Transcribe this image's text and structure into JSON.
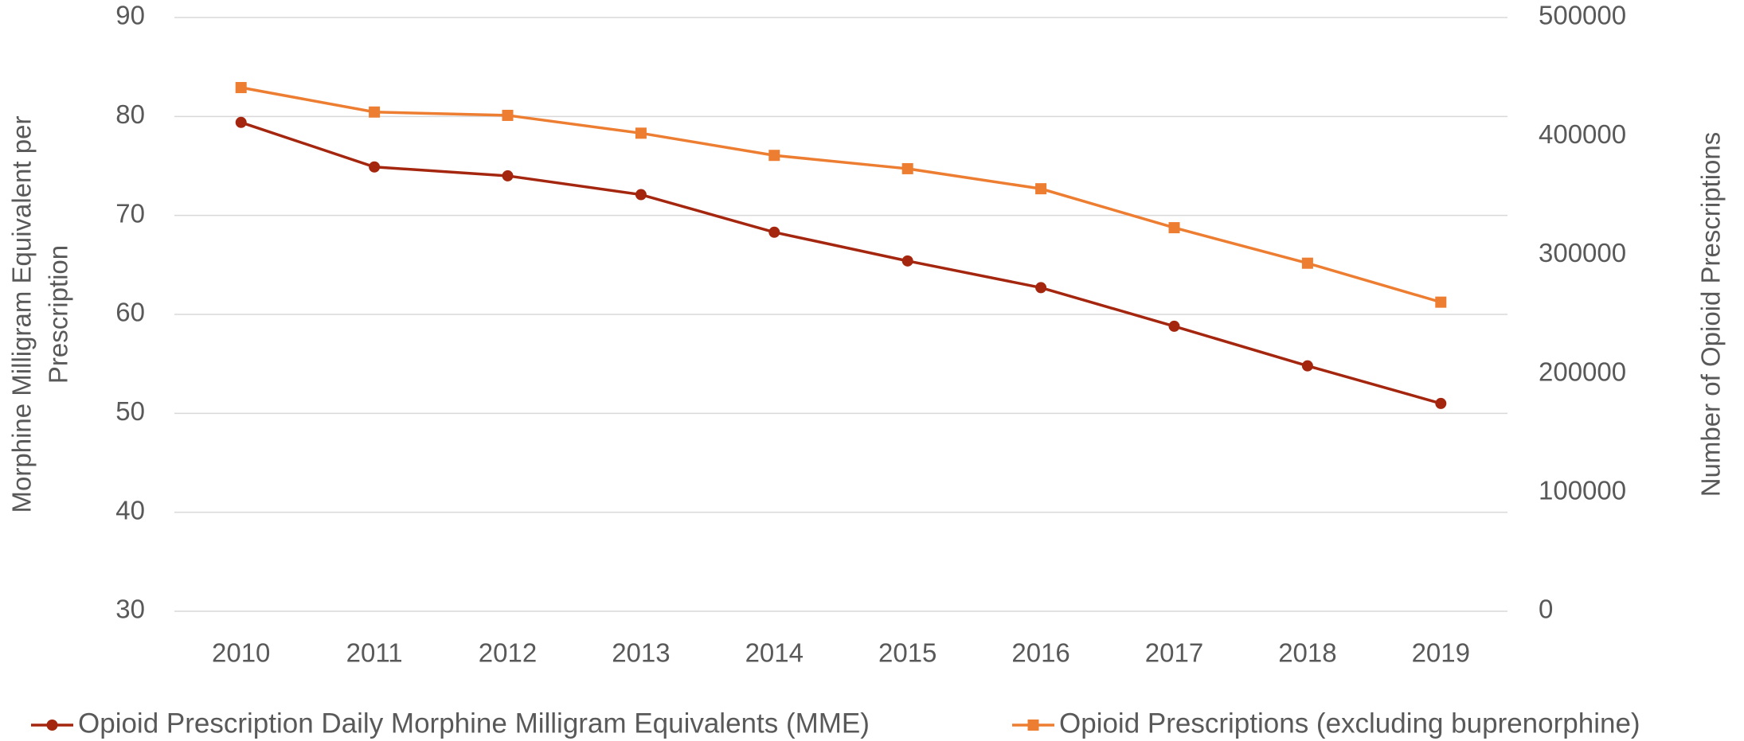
{
  "chart_data": {
    "type": "line",
    "categories": [
      "2010",
      "2011",
      "2012",
      "2013",
      "2014",
      "2015",
      "2016",
      "2017",
      "2018",
      "2019"
    ],
    "series": [
      {
        "name": "Opioid Prescription Daily Morphine Milligram Equivalents (MME)",
        "color": "#a5260f",
        "marker": "circle",
        "values": [
          79.4,
          74.9,
          74.0,
          72.1,
          68.3,
          65.4,
          62.7,
          58.8,
          54.8,
          51.0
        ]
      },
      {
        "name": "Opioid Prescriptions (excluding buprenorphine)",
        "color": "#ed7d31",
        "marker": "square",
        "axis": "y2",
        "values": [
          441000,
          420400,
          417600,
          402600,
          383900,
          372700,
          355800,
          323000,
          293100,
          260300
        ]
      }
    ],
    "ylabel": [
      "Morphine Milligram Equivalent per",
      "Prescription"
    ],
    "y2label": "Number of Opioid Prescriptions",
    "ylim": [
      30,
      90
    ],
    "yticks": [
      30,
      40,
      50,
      60,
      70,
      80,
      90
    ],
    "y2lim": [
      0,
      500000
    ],
    "y2ticks": [
      0,
      100000,
      200000,
      300000,
      400000,
      500000
    ],
    "grid": true,
    "legend": "bottom"
  }
}
